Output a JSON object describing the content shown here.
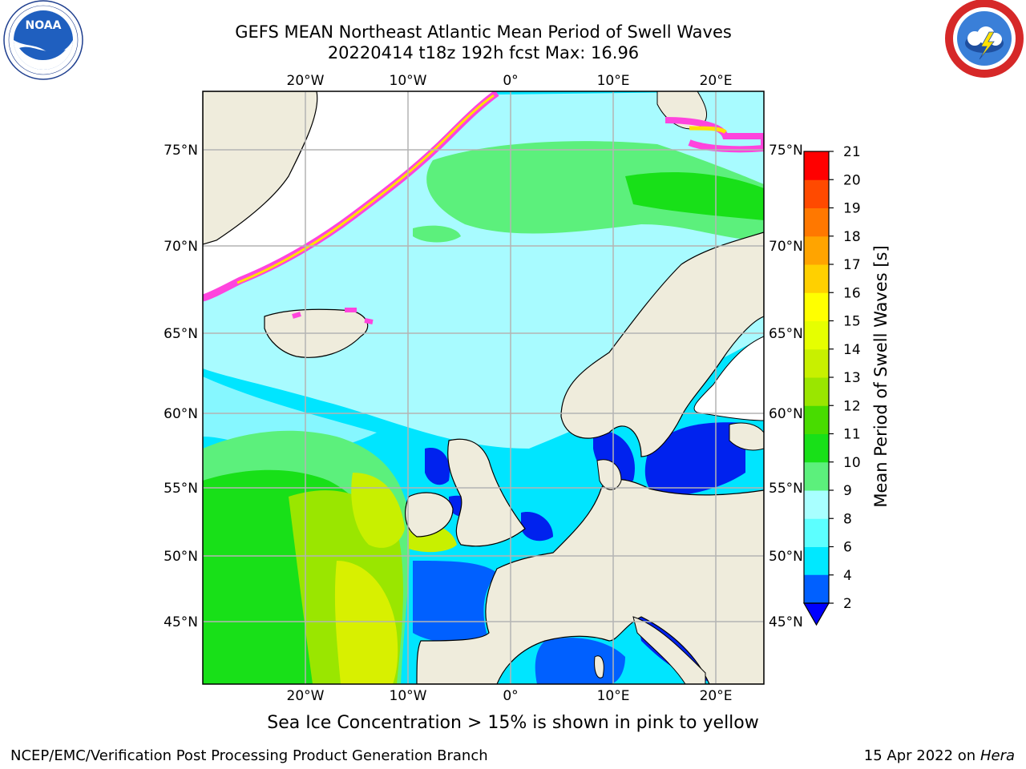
{
  "header": {
    "title_line1": "GEFS MEAN Northeast Atlantic Mean Period of Swell Waves",
    "title_line2": "20220414 t18z 192h fcst   Max: 16.96"
  },
  "logos": {
    "left": "noaa-logo",
    "right": "national-weather-service-logo"
  },
  "map": {
    "lon_ticks": [
      "20°W",
      "10°W",
      "0°",
      "10°E",
      "20°E"
    ],
    "lat_ticks": [
      "75°N",
      "70°N",
      "65°N",
      "60°N",
      "55°N",
      "50°N",
      "45°N"
    ],
    "colors": {
      "land": "#efecdc",
      "ocean_low": "#0022ee",
      "ocean_mid": "#00e5ff",
      "ocean_light": "#a8fbff",
      "ocean_green": "#5cf07c",
      "ocean_yellow": "#d8f000",
      "ice_pink": "#ff44dd",
      "ice_yellow": "#ffe000",
      "grid": "#b4b4b4"
    }
  },
  "colorbar": {
    "label": "Mean Period of Swell Waves [s]",
    "tick_values": [
      "2",
      "4",
      "6",
      "8",
      "9",
      "10",
      "11",
      "12",
      "13",
      "14",
      "15",
      "16",
      "17",
      "18",
      "19",
      "20",
      "21"
    ],
    "colors": [
      "#0060ff",
      "#00c8ff",
      "#00e8ff",
      "#5cffff",
      "#a8ffff",
      "#5cf07c",
      "#18e018",
      "#48dc00",
      "#9ae600",
      "#c8f000",
      "#e6ff00",
      "#ffff00",
      "#ffd000",
      "#ffa400",
      "#ff7800",
      "#ff4a00",
      "#ff0000"
    ],
    "under_color": "#0000ff"
  },
  "footer": {
    "caption": "Sea Ice Concentration > 15% is shown in pink to yellow",
    "org": "NCEP/EMC/Verification Post Processing Product Generation Branch",
    "date": "15 Apr 2022 on ",
    "host": "Hera"
  }
}
